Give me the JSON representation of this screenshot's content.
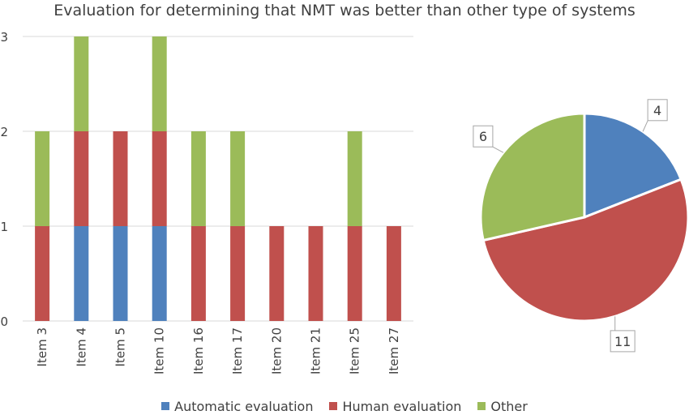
{
  "chart_data": [
    {
      "type": "bar",
      "stacked": true,
      "title": "Evaluation for determining that NMT was better than other type of systems",
      "categories": [
        "Item 3",
        "Item 4",
        "Item 5",
        "Item 10",
        "Item 16",
        "Item 17",
        "Item 20",
        "Item 21",
        "Item 25",
        "Item 27"
      ],
      "series": [
        {
          "name": "Automatic evaluation",
          "color": "#4f81bd",
          "values": [
            0,
            1,
            1,
            1,
            0,
            0,
            0,
            0,
            0,
            0
          ]
        },
        {
          "name": "Human evaluation",
          "color": "#c0504d",
          "values": [
            1,
            1,
            1,
            1,
            1,
            1,
            1,
            1,
            1,
            1
          ]
        },
        {
          "name": "Other",
          "color": "#9bbb59",
          "values": [
            1,
            1,
            0,
            1,
            1,
            1,
            0,
            0,
            1,
            0
          ]
        }
      ],
      "yticks": [
        "0",
        "1",
        "2",
        "3"
      ],
      "ylim": [
        0,
        3
      ],
      "grid": true,
      "legend_position": "bottom"
    },
    {
      "type": "pie",
      "slices": [
        {
          "name": "Automatic evaluation",
          "value": 4,
          "label": "4",
          "color": "#4f81bd"
        },
        {
          "name": "Human evaluation",
          "value": 11,
          "label": "11",
          "color": "#c0504d"
        },
        {
          "name": "Other",
          "value": 6,
          "label": "6",
          "color": "#9bbb59"
        }
      ]
    }
  ]
}
